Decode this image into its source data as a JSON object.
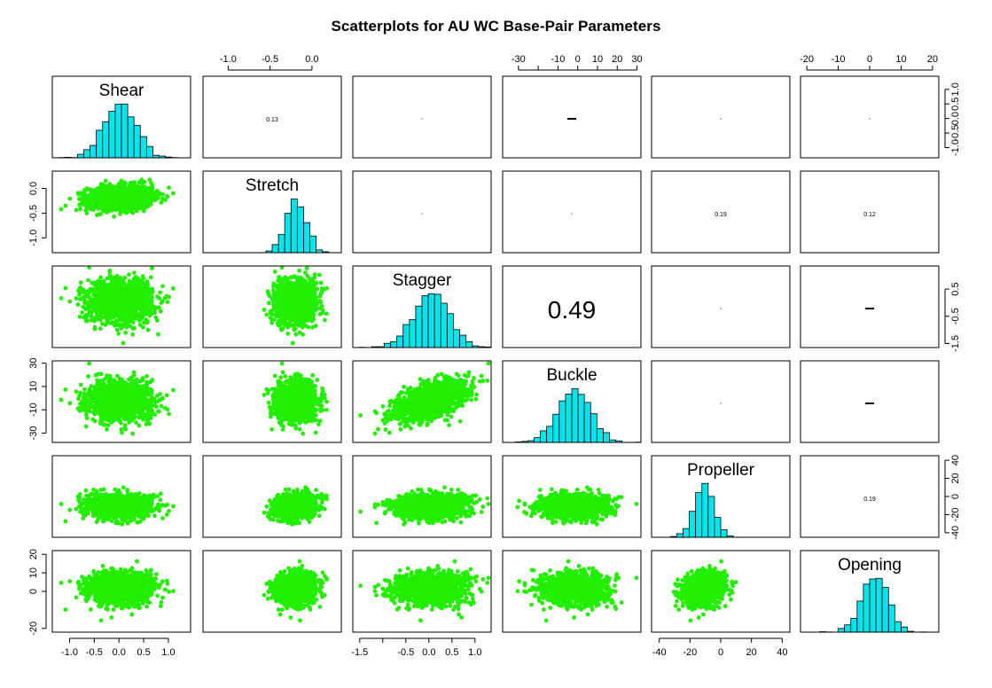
{
  "title": "Scatterplots for AU WC Base-Pair Parameters",
  "chart_data": {
    "type": "scatter_matrix",
    "title": "Scatterplots for AU WC Base-Pair Parameters",
    "variables": [
      "Shear",
      "Stretch",
      "Stagger",
      "Buckle",
      "Propeller",
      "Opening"
    ],
    "ranges": {
      "Shear": [
        -1.35,
        1.45
      ],
      "Stretch": [
        -1.3,
        0.35
      ],
      "Stagger": [
        -1.65,
        1.35
      ],
      "Buckle": [
        -38,
        32
      ],
      "Propeller": [
        -45,
        45
      ],
      "Opening": [
        -22,
        22
      ]
    },
    "ticks": {
      "Shear": [
        -1.0,
        -0.5,
        0.0,
        0.5,
        1.0
      ],
      "Stretch": [
        -1.0,
        -0.5,
        0.0
      ],
      "Stagger": [
        -1.5,
        -0.5,
        0.5
      ],
      "Stagger_bottom": [
        -1.5,
        -1.0,
        -0.5,
        0.0,
        0.5,
        1.0
      ],
      "Buckle": [
        -30,
        -10,
        10,
        30
      ],
      "Buckle_top": [
        -30,
        -20,
        -10,
        0,
        10,
        20,
        30
      ],
      "Propeller": [
        -40,
        -20,
        0,
        20,
        40
      ],
      "Opening": [
        -20,
        0,
        10,
        20
      ],
      "Opening_top": [
        -20,
        -10,
        0,
        10,
        20
      ],
      "Shear_right": [
        -1.0,
        -0.5,
        0.0,
        0.5,
        1.0
      ]
    },
    "tick_labels": {
      "Shear": [
        "-1.0",
        "-0.5",
        "0.0",
        "0.5",
        "1.0"
      ],
      "Stretch": [
        "-1.0",
        "-0.5",
        "0.0"
      ],
      "Stagger": [
        "-1.5",
        "-0.5",
        "0.5"
      ],
      "Stagger_bottom": [
        "-1.5",
        "",
        "-0.5",
        "0.0",
        "0.5",
        "1.0"
      ],
      "Buckle": [
        "-30",
        "-10",
        "10",
        "30"
      ],
      "Buckle_top": [
        "-30",
        "",
        "-10",
        "0",
        "10",
        "20",
        "30"
      ],
      "Propeller": [
        "-40",
        "-20",
        "0",
        "20",
        "40"
      ],
      "Opening": [
        "-20",
        "0",
        "10",
        "20"
      ],
      "Opening_top": [
        "-20",
        "-10",
        "0",
        "10",
        "20"
      ],
      "Shear_right": [
        "-1.0",
        "-0.5",
        "0.0",
        "0.5",
        "1.0"
      ]
    },
    "stats": {
      "Shear": {
        "mean": 0.02,
        "sd": 0.33
      },
      "Stretch": {
        "mean": -0.19,
        "sd": 0.12
      },
      "Stagger": {
        "mean": 0.05,
        "sd": 0.38
      },
      "Buckle": {
        "mean": -1.5,
        "sd": 8.5
      },
      "Propeller": {
        "mean": -10.5,
        "sd": 6.5
      },
      "Opening": {
        "mean": 1.5,
        "sd": 4.0
      }
    },
    "correlations": [
      {
        "row": 0,
        "col": 1,
        "label": "0.13",
        "size": "small"
      },
      {
        "row": 0,
        "col": 2,
        "label": "",
        "size": "dot"
      },
      {
        "row": 0,
        "col": 3,
        "label": "",
        "size": "dash"
      },
      {
        "row": 0,
        "col": 4,
        "label": "",
        "size": "dot"
      },
      {
        "row": 0,
        "col": 5,
        "label": "",
        "size": "dot"
      },
      {
        "row": 1,
        "col": 2,
        "label": "",
        "size": "dot"
      },
      {
        "row": 1,
        "col": 3,
        "label": "",
        "size": "dot"
      },
      {
        "row": 1,
        "col": 4,
        "label": "0.19",
        "size": "small"
      },
      {
        "row": 1,
        "col": 5,
        "label": "0.12",
        "size": "small"
      },
      {
        "row": 2,
        "col": 3,
        "label": "0.49",
        "size": "large"
      },
      {
        "row": 2,
        "col": 4,
        "label": "",
        "size": "dot"
      },
      {
        "row": 2,
        "col": 5,
        "label": "",
        "size": "dash"
      },
      {
        "row": 3,
        "col": 4,
        "label": "",
        "size": "dot"
      },
      {
        "row": 3,
        "col": 5,
        "label": "",
        "size": "dash"
      },
      {
        "row": 4,
        "col": 5,
        "label": "0.19",
        "size": "small"
      }
    ],
    "point_color": "#22ee00",
    "histogram_color": "#00e5ee",
    "grid": false
  }
}
